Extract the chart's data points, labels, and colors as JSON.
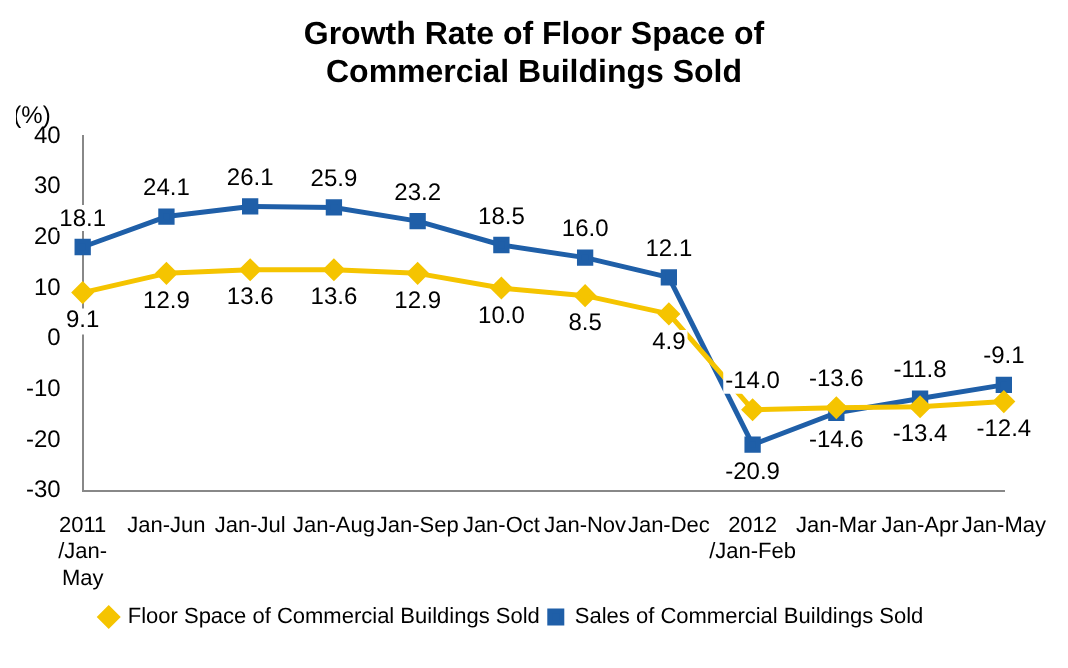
{
  "chart_data": {
    "type": "line",
    "title": "Growth Rate of Floor Space of Commercial Buildings Sold",
    "ylabel": "(%)",
    "categories": [
      "2011 /Jan- May",
      "Jan-Jun",
      "Jan-Jul",
      "Jan-Aug",
      "Jan-Sep",
      "Jan-Oct",
      "Jan-Nov",
      "Jan-Dec",
      "2012 /Jan-Feb",
      "Jan-Mar",
      "Jan-Apr",
      "Jan-May"
    ],
    "series": [
      {
        "name": "Floor Space of Commercial Buildings Sold",
        "color": "#f5c400",
        "marker": "diamond",
        "values": [
          9.1,
          12.9,
          13.6,
          13.6,
          12.9,
          10.0,
          8.5,
          4.9,
          -14.0,
          -13.6,
          -13.4,
          -12.4
        ],
        "value_labels": [
          "9.1",
          "12.9",
          "13.6",
          "13.6",
          "12.9",
          "10.0",
          "8.5",
          "4.9",
          "-14.0",
          "-13.6",
          "-13.4",
          "-12.4"
        ]
      },
      {
        "name": "Sales of Commercial Buildings Sold",
        "color": "#1f5fa8",
        "marker": "square",
        "values": [
          18.1,
          24.1,
          26.1,
          25.9,
          23.2,
          18.5,
          16.0,
          12.1,
          -20.9,
          -14.6,
          -11.8,
          -9.1
        ],
        "value_labels": [
          "18.1",
          "24.1",
          "26.1",
          "25.9",
          "23.2",
          "18.5",
          "16.0",
          "12.1",
          "-20.9",
          "-14.6",
          "-11.8",
          "-9.1"
        ]
      }
    ],
    "ylim": [
      -30,
      40
    ],
    "yticks": [
      -30,
      -20,
      -10,
      0,
      10,
      20,
      30,
      40
    ],
    "grid": false,
    "legend": "bottom"
  }
}
